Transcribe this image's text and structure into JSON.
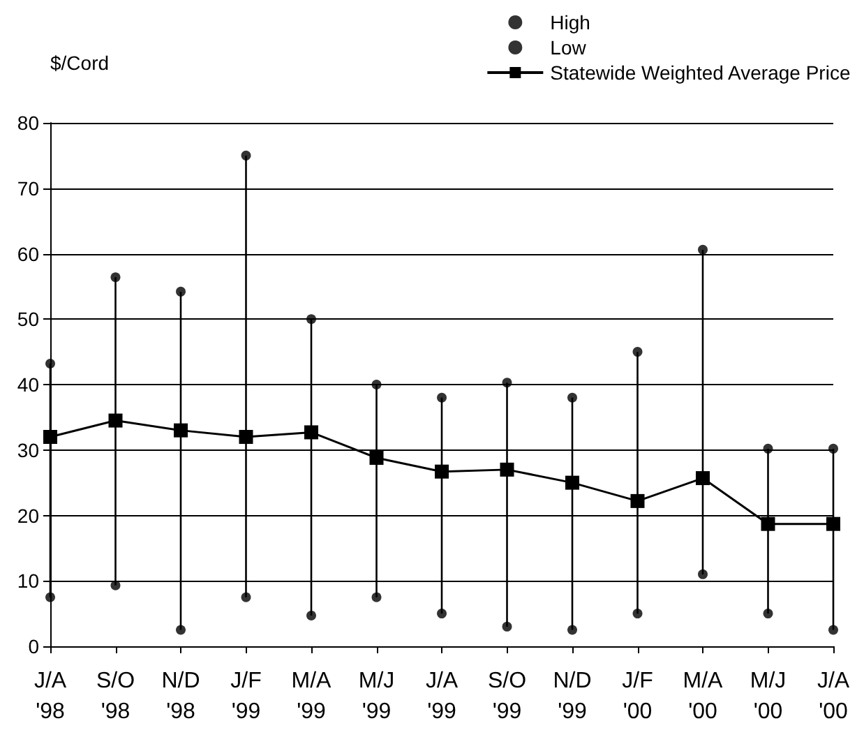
{
  "chart_data": {
    "type": "line",
    "ylabel": "$/Cord",
    "categories": [
      "J/A '98",
      "S/O '98",
      "N/D '98",
      "J/F '99",
      "M/A '99",
      "M/J '99",
      "J/A '99",
      "S/O '99",
      "N/D '99",
      "J/F '00",
      "M/A '00",
      "M/J '00",
      "J/A '00"
    ],
    "series": [
      {
        "name": "High",
        "type": "scatter",
        "marker": "circle",
        "color": "#000000",
        "values": [
          43.2,
          56.4,
          54.2,
          75,
          50,
          40,
          38,
          40.3,
          38,
          45,
          60.6,
          30.2,
          30.2
        ]
      },
      {
        "name": "Low",
        "type": "scatter",
        "marker": "circle",
        "color": "#000000",
        "values": [
          7.5,
          9.3,
          2.5,
          7.5,
          4.7,
          7.5,
          5,
          3,
          2.5,
          5,
          11,
          5,
          2.5
        ]
      },
      {
        "name": "Statewide Weighted Average Price",
        "marker": "square",
        "color": "#000000",
        "values": [
          32,
          34.5,
          33,
          32,
          32.7,
          28.8,
          26.7,
          27,
          25,
          22.2,
          25.7,
          18.7,
          18.7
        ]
      }
    ],
    "ylim": [
      0,
      80
    ],
    "yticks": [
      0,
      10,
      20,
      30,
      40,
      50,
      60,
      70,
      80
    ],
    "grid": "y",
    "legend": "top right"
  }
}
